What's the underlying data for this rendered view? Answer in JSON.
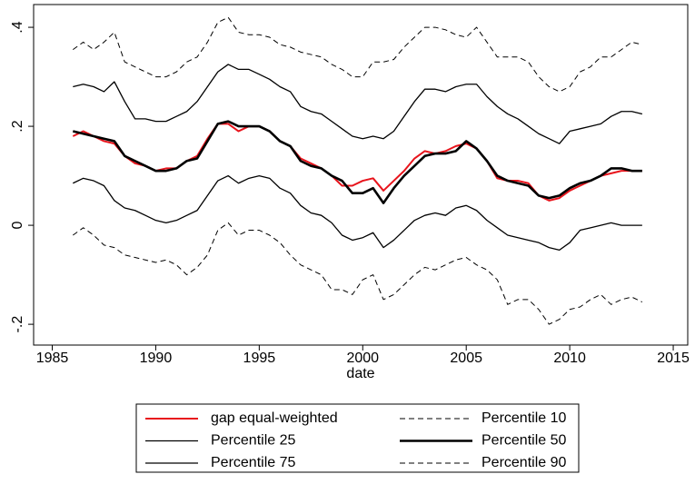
{
  "chart_data": {
    "type": "line",
    "x_label": "date",
    "x": [
      1986,
      1986.5,
      1987,
      1987.5,
      1988,
      1988.5,
      1989,
      1989.5,
      1990,
      1990.5,
      1991,
      1991.5,
      1992,
      1992.5,
      1993,
      1993.5,
      1994,
      1994.5,
      1995,
      1995.5,
      1996,
      1996.5,
      1997,
      1997.5,
      1998,
      1998.5,
      1999,
      1999.5,
      2000,
      2000.5,
      2001,
      2001.5,
      2002,
      2002.5,
      2003,
      2003.5,
      2004,
      2004.5,
      2005,
      2005.5,
      2006,
      2006.5,
      2007,
      2007.5,
      2008,
      2008.5,
      2009,
      2009.5,
      2010,
      2010.5,
      2011,
      2011.5,
      2012,
      2012.5,
      2013,
      2013.5
    ],
    "xlim": [
      1984.1,
      2015.7
    ],
    "xticks": [
      1985,
      1990,
      1995,
      2000,
      2005,
      2010,
      2015
    ],
    "ylim": [
      -0.242,
      0.446
    ],
    "yticks": [
      {
        "value": -0.2,
        "label": "-.2"
      },
      0,
      {
        "value": 0.2,
        "label": ".2"
      },
      {
        "value": 0.4,
        "label": ".4"
      }
    ],
    "series": [
      {
        "name": "gap equal-weighted",
        "color": "#e8141c",
        "width": 2,
        "dash": false,
        "values": [
          0.18,
          0.19,
          0.18,
          0.17,
          0.165,
          0.14,
          0.125,
          0.12,
          0.11,
          0.115,
          0.115,
          0.13,
          0.14,
          0.175,
          0.205,
          0.205,
          0.19,
          0.2,
          0.2,
          0.19,
          0.17,
          0.16,
          0.135,
          0.125,
          0.115,
          0.1,
          0.08,
          0.08,
          0.09,
          0.095,
          0.07,
          0.09,
          0.11,
          0.135,
          0.15,
          0.145,
          0.15,
          0.16,
          0.165,
          0.155,
          0.13,
          0.095,
          0.09,
          0.09,
          0.085,
          0.06,
          0.05,
          0.055,
          0.07,
          0.08,
          0.09,
          0.1,
          0.105,
          0.11,
          0.11,
          0.11
        ]
      },
      {
        "name": "Percentile 10",
        "color": "#000000",
        "width": 1,
        "dash": true,
        "values": [
          -0.02,
          -0.005,
          -0.02,
          -0.04,
          -0.045,
          -0.06,
          -0.065,
          -0.07,
          -0.075,
          -0.07,
          -0.08,
          -0.1,
          -0.085,
          -0.06,
          -0.01,
          0.005,
          -0.02,
          -0.01,
          -0.01,
          -0.02,
          -0.035,
          -0.06,
          -0.08,
          -0.09,
          -0.1,
          -0.13,
          -0.13,
          -0.14,
          -0.11,
          -0.1,
          -0.15,
          -0.14,
          -0.12,
          -0.1,
          -0.085,
          -0.09,
          -0.08,
          -0.07,
          -0.065,
          -0.08,
          -0.09,
          -0.11,
          -0.16,
          -0.15,
          -0.15,
          -0.17,
          -0.2,
          -0.19,
          -0.17,
          -0.165,
          -0.15,
          -0.14,
          -0.16,
          -0.15,
          -0.145,
          -0.155
        ]
      },
      {
        "name": "Percentile 25",
        "color": "#000000",
        "width": 1.3,
        "dash": false,
        "values": [
          0.085,
          0.095,
          0.09,
          0.08,
          0.05,
          0.035,
          0.03,
          0.02,
          0.01,
          0.005,
          0.01,
          0.02,
          0.03,
          0.06,
          0.09,
          0.1,
          0.085,
          0.095,
          0.1,
          0.095,
          0.075,
          0.065,
          0.04,
          0.025,
          0.02,
          0.005,
          -0.02,
          -0.03,
          -0.025,
          -0.015,
          -0.045,
          -0.03,
          -0.01,
          0.01,
          0.02,
          0.025,
          0.02,
          0.035,
          0.04,
          0.03,
          0.01,
          -0.005,
          -0.02,
          -0.025,
          -0.03,
          -0.035,
          -0.045,
          -0.05,
          -0.035,
          -0.01,
          -0.005,
          0,
          0.005,
          0,
          0,
          0
        ]
      },
      {
        "name": "Percentile 50",
        "color": "#000000",
        "width": 2.6,
        "dash": false,
        "values": [
          0.19,
          0.185,
          0.18,
          0.175,
          0.17,
          0.14,
          0.13,
          0.12,
          0.11,
          0.11,
          0.115,
          0.13,
          0.135,
          0.17,
          0.205,
          0.21,
          0.2,
          0.2,
          0.2,
          0.19,
          0.17,
          0.16,
          0.13,
          0.12,
          0.115,
          0.1,
          0.09,
          0.065,
          0.065,
          0.075,
          0.045,
          0.075,
          0.1,
          0.12,
          0.14,
          0.145,
          0.145,
          0.15,
          0.17,
          0.155,
          0.13,
          0.1,
          0.09,
          0.085,
          0.08,
          0.06,
          0.055,
          0.06,
          0.075,
          0.085,
          0.09,
          0.1,
          0.115,
          0.115,
          0.11,
          0.11
        ]
      },
      {
        "name": "Percentile 75",
        "color": "#000000",
        "width": 1.3,
        "dash": false,
        "values": [
          0.28,
          0.285,
          0.28,
          0.27,
          0.29,
          0.25,
          0.215,
          0.215,
          0.21,
          0.21,
          0.22,
          0.23,
          0.25,
          0.28,
          0.31,
          0.325,
          0.315,
          0.315,
          0.305,
          0.295,
          0.28,
          0.27,
          0.24,
          0.23,
          0.225,
          0.21,
          0.195,
          0.18,
          0.175,
          0.18,
          0.175,
          0.19,
          0.22,
          0.25,
          0.275,
          0.275,
          0.27,
          0.28,
          0.285,
          0.285,
          0.26,
          0.24,
          0.225,
          0.215,
          0.2,
          0.185,
          0.175,
          0.165,
          0.19,
          0.195,
          0.2,
          0.205,
          0.22,
          0.23,
          0.23,
          0.225
        ]
      },
      {
        "name": "Percentile 90",
        "color": "#000000",
        "width": 1,
        "dash": true,
        "values": [
          0.355,
          0.37,
          0.355,
          0.37,
          0.39,
          0.33,
          0.32,
          0.31,
          0.3,
          0.3,
          0.31,
          0.33,
          0.34,
          0.37,
          0.41,
          0.42,
          0.39,
          0.385,
          0.385,
          0.38,
          0.365,
          0.36,
          0.35,
          0.345,
          0.34,
          0.325,
          0.315,
          0.3,
          0.3,
          0.33,
          0.33,
          0.335,
          0.36,
          0.38,
          0.4,
          0.4,
          0.395,
          0.385,
          0.38,
          0.4,
          0.37,
          0.34,
          0.34,
          0.34,
          0.33,
          0.3,
          0.28,
          0.27,
          0.28,
          0.31,
          0.32,
          0.34,
          0.34,
          0.355,
          0.37,
          0.365
        ]
      }
    ]
  }
}
